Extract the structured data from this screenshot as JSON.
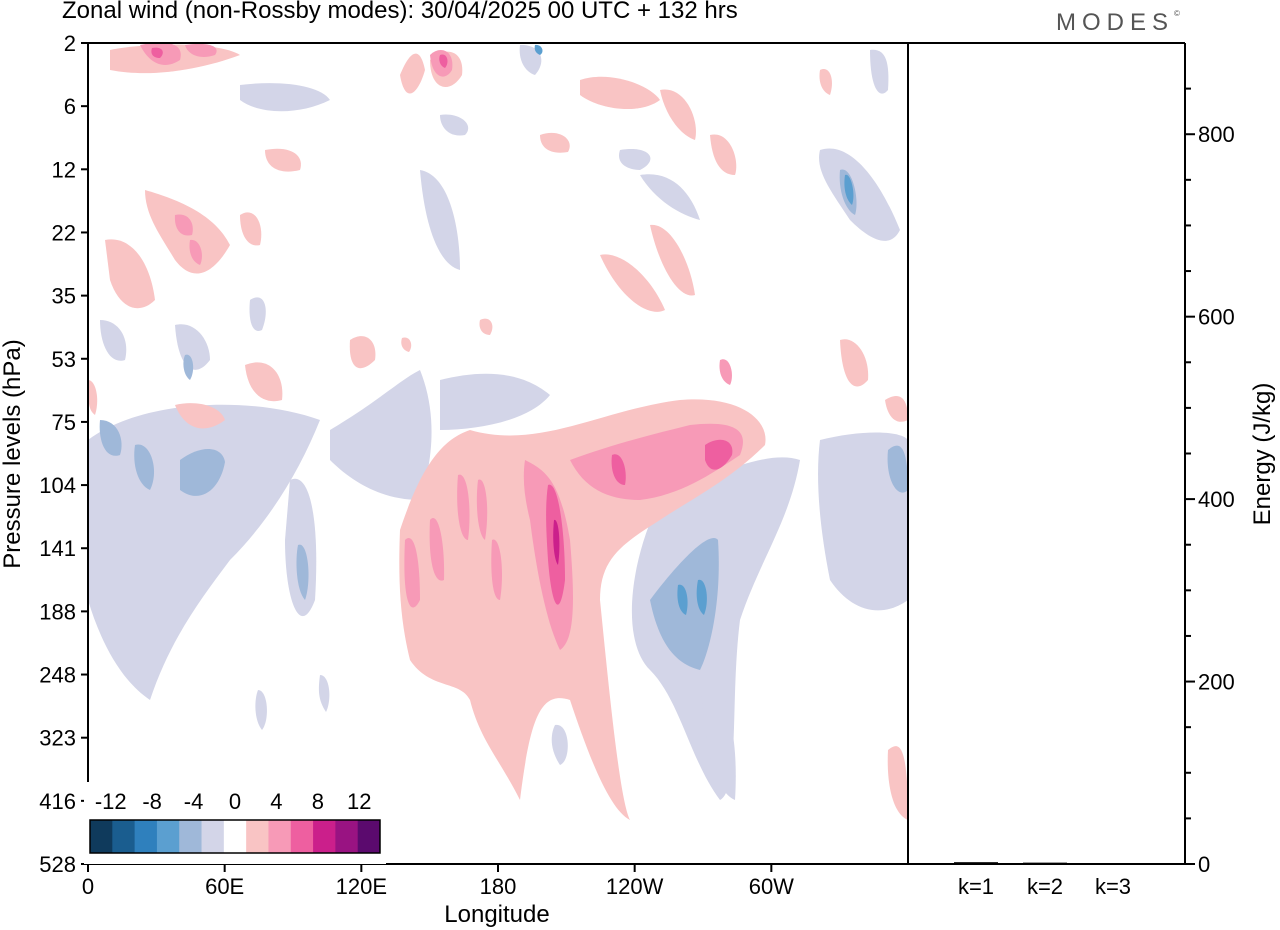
{
  "header": {
    "title": "Zonal wind (non-Rossby modes):  30/04/2025  00 UTC  + 132 hrs",
    "logo": "MODES"
  },
  "chart_data": [
    {
      "type": "heatmap",
      "field": "zonal wind anomaly",
      "xlabel": "Longitude",
      "ylabel": "Pressure levels (hPa)",
      "x_ticks": [
        "0",
        "60E",
        "120E",
        "180",
        "120W",
        "60W"
      ],
      "y_ticks": [
        "2",
        "6",
        "12",
        "22",
        "35",
        "53",
        "75",
        "104",
        "141",
        "188",
        "248",
        "323",
        "416",
        "528"
      ],
      "y_scale": "log-like (model levels)",
      "colorbar": {
        "labels": [
          "-12",
          "-8",
          "-4",
          "0",
          "4",
          "8",
          "12"
        ],
        "levels": [
          -14,
          -12,
          -10,
          -8,
          -6,
          -4,
          -2,
          2,
          4,
          6,
          8,
          10,
          12,
          14
        ],
        "colors": [
          "#0f3a5c",
          "#1a5d8f",
          "#2f80bd",
          "#5b9fd0",
          "#9fb8d9",
          "#d3d5e8",
          "#ffffff",
          "#f9c4c4",
          "#f79ab7",
          "#ee5fa0",
          "#cb1f8b",
          "#991382",
          "#5b0a6e"
        ]
      },
      "features": [
        {
          "sign": "positive",
          "max": 8,
          "lon_from": "150E",
          "lon_to": "70W",
          "level_from": 75,
          "level_to": 416,
          "note": "tilted positive band"
        },
        {
          "sign": "negative",
          "max": -8,
          "lon_from": "135W",
          "lon_to": "105W",
          "level_from": 104,
          "level_to": 248
        },
        {
          "sign": "negative",
          "max": -6,
          "lon_from": "0",
          "lon_to": "75E",
          "level_from": 75,
          "level_to": 141
        }
      ]
    },
    {
      "type": "bar",
      "categories": [
        "k=1",
        "k=2",
        "k=3"
      ],
      "values": [
        2,
        1.5,
        1
      ],
      "ylabel": "Energy (J/kg)",
      "ylim": [
        0,
        900
      ],
      "y_ticks": [
        "0",
        "200",
        "400",
        "600",
        "800"
      ]
    }
  ]
}
